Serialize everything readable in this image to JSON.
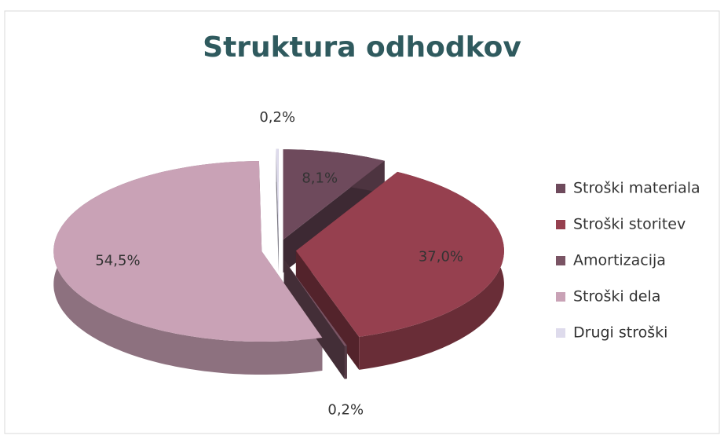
{
  "chart_data": {
    "type": "pie",
    "title": "Struktura odhodkov",
    "categories": [
      "Stroški materiala",
      "Stroški storitev",
      "Amortizacija",
      "Stroški dela",
      "Drugi stroški"
    ],
    "values": [
      8.1,
      37.0,
      0.2,
      54.5,
      0.2
    ],
    "value_labels": [
      "8,1%",
      "37,0%",
      "0,2%",
      "54,5%",
      "0,2%"
    ],
    "colors": [
      "#6e4a5c",
      "#96404f",
      "#7a5464",
      "#c9a2b6",
      "#dedbec"
    ],
    "legend": "right"
  }
}
